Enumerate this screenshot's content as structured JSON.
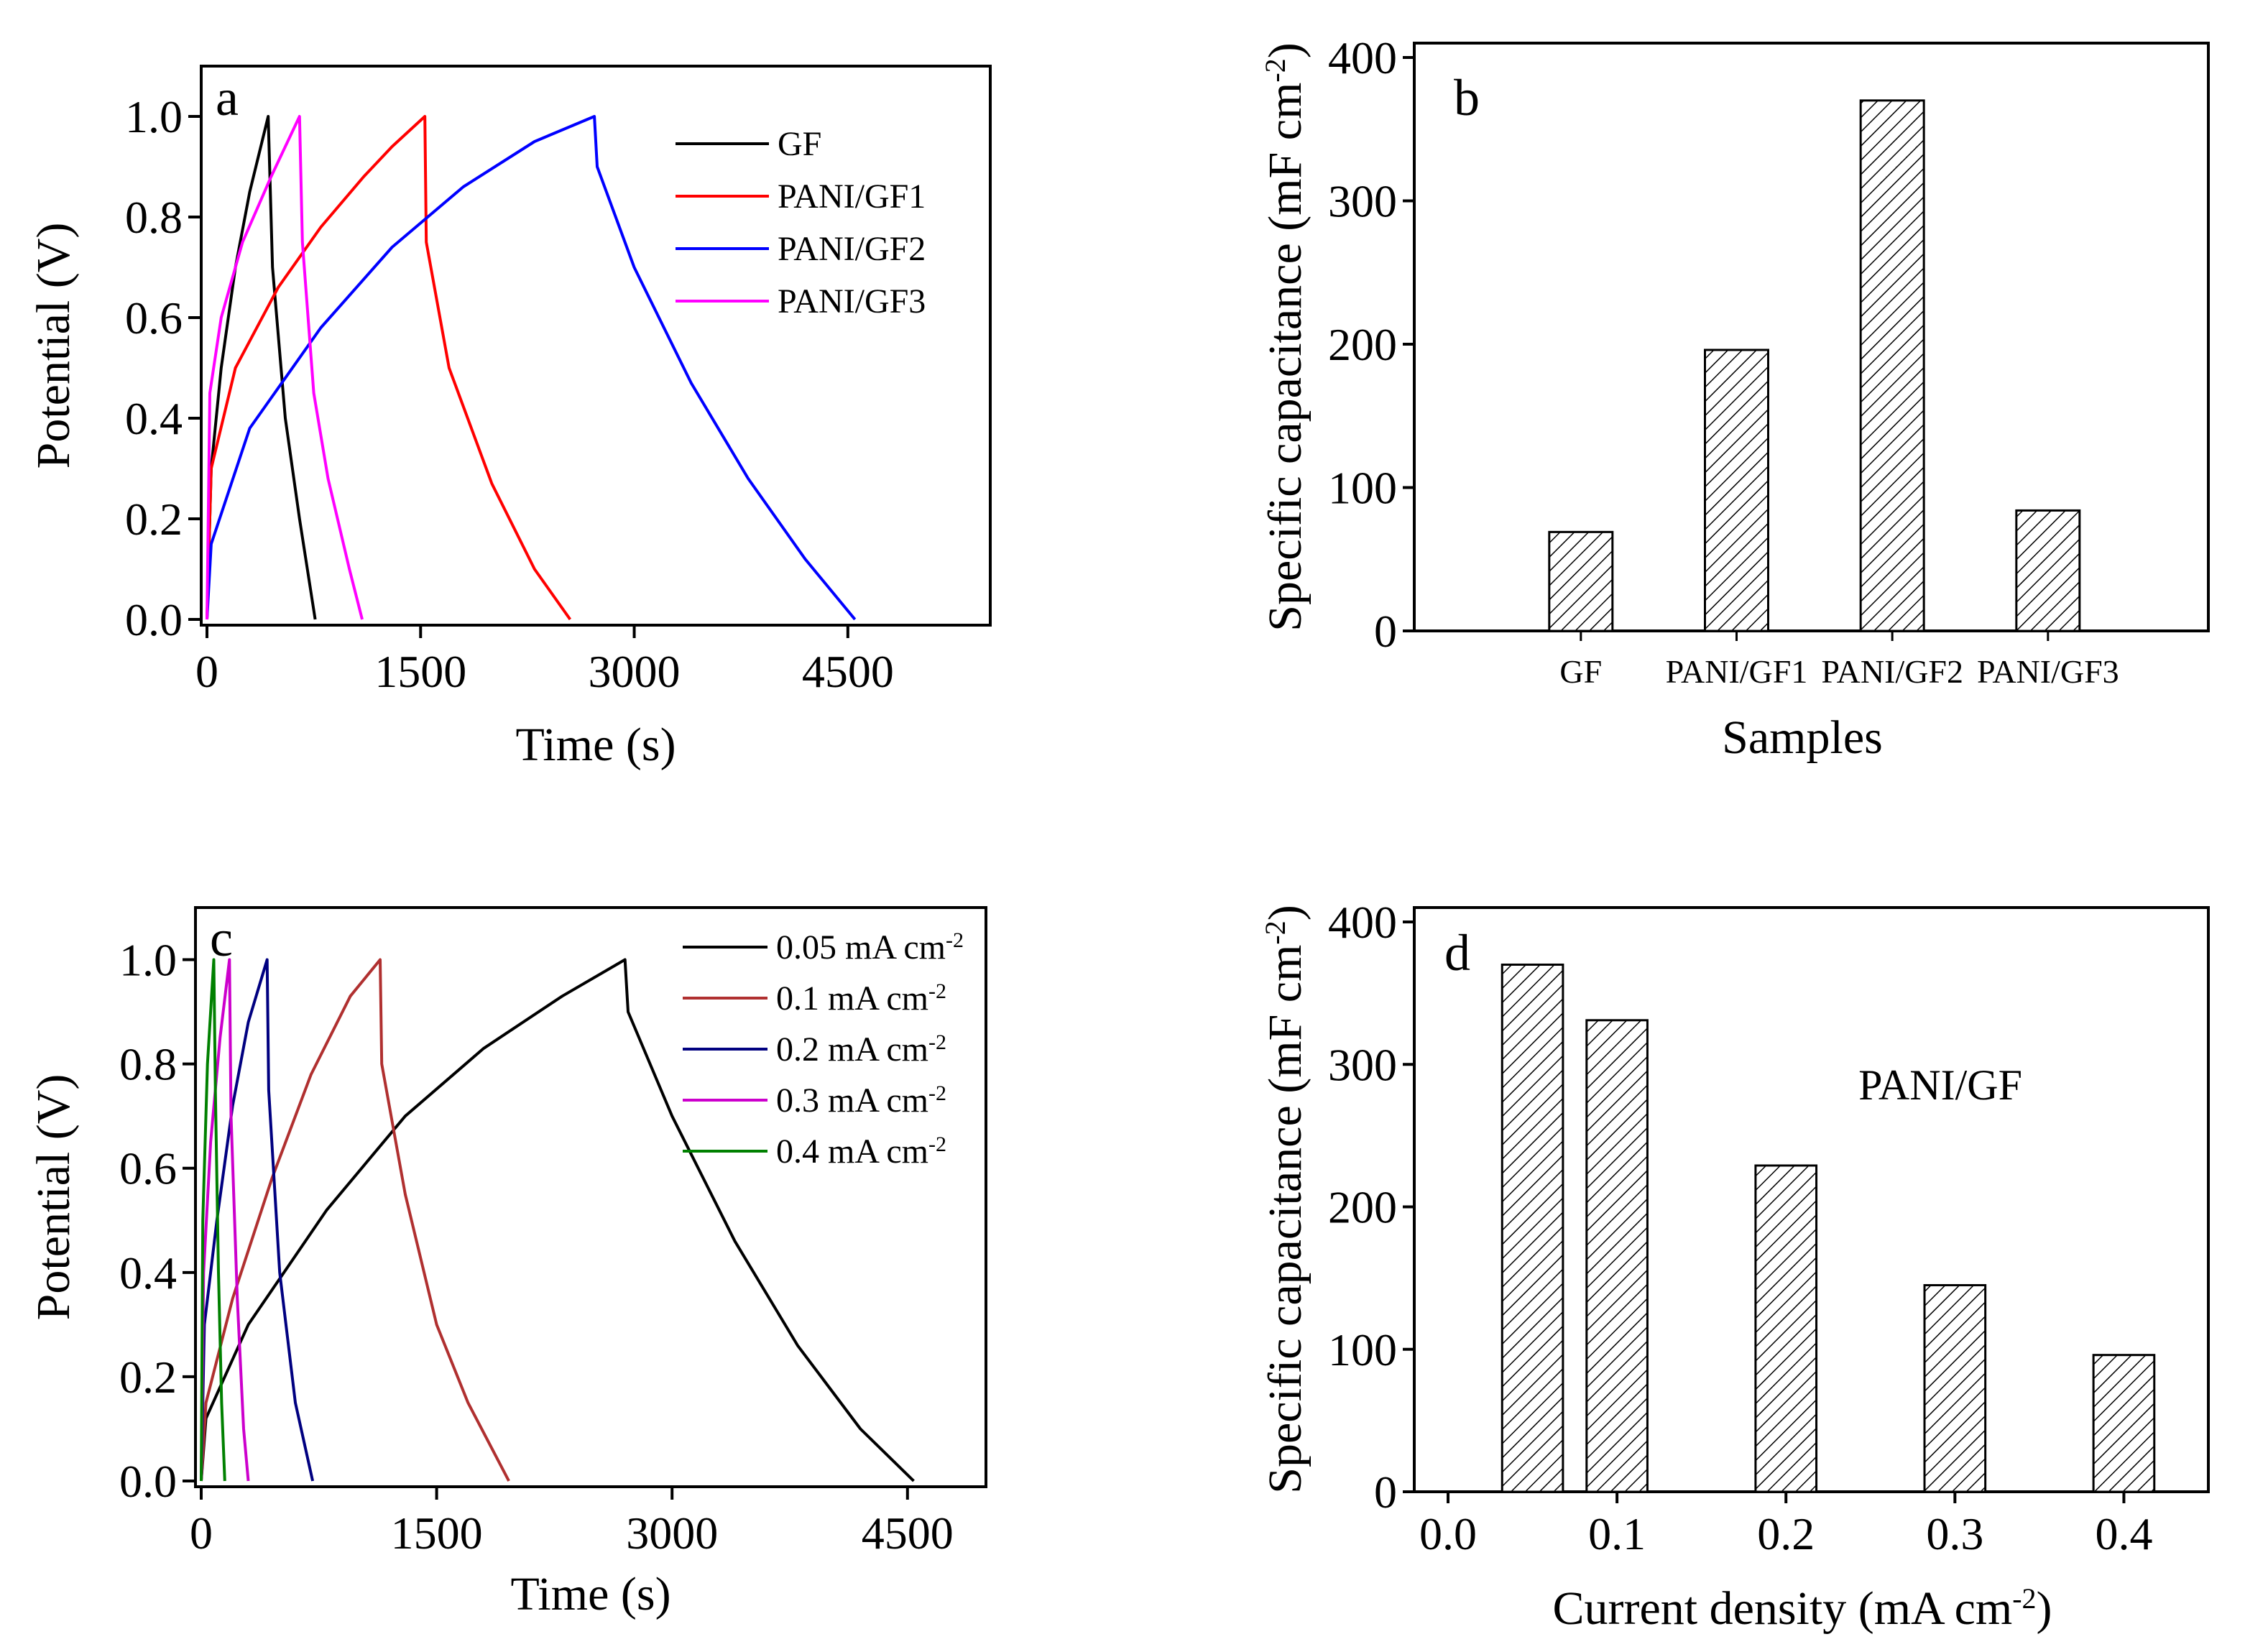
{
  "chart_data": [
    {
      "type": "line",
      "panel": "a",
      "xlabel": "Time (s)",
      "ylabel": "Potential (V)",
      "xlim": [
        0,
        5500
      ],
      "ylim": [
        0,
        1.1
      ],
      "xticks": [
        0,
        1500,
        3000,
        4500
      ],
      "xtick_labels": [
        "0",
        "1500",
        "3000",
        "4500"
      ],
      "yticks": [
        0.0,
        0.2,
        0.4,
        0.6,
        0.8,
        1.0
      ],
      "ytick_labels": [
        "0.0",
        "0.2",
        "0.4",
        "0.6",
        "0.8",
        "1.0"
      ],
      "legend_position": "top-right",
      "series": [
        {
          "name": "GF",
          "color": "#000000",
          "x": [
            0,
            30,
            100,
            200,
            300,
            430,
            460,
            550,
            650,
            760
          ],
          "y": [
            0.0,
            0.3,
            0.5,
            0.7,
            0.85,
            1.0,
            0.7,
            0.4,
            0.2,
            0.0
          ]
        },
        {
          "name": "PANI/GF1",
          "color": "#ff0000",
          "x": [
            0,
            30,
            200,
            500,
            800,
            1100,
            1300,
            1530,
            1540,
            1700,
            2000,
            2300,
            2550
          ],
          "y": [
            0.0,
            0.3,
            0.5,
            0.66,
            0.78,
            0.88,
            0.94,
            1.0,
            0.75,
            0.5,
            0.27,
            0.1,
            0.0
          ],
          "hide_label": true
        },
        {
          "name": "PANI/GF2",
          "color": "#0000ff",
          "x": [
            0,
            30,
            300,
            800,
            1300,
            1800,
            2300,
            2720,
            2740,
            3000,
            3400,
            3800,
            4200,
            4550
          ],
          "y": [
            0.0,
            0.15,
            0.38,
            0.58,
            0.74,
            0.86,
            0.95,
            1.0,
            0.9,
            0.7,
            0.47,
            0.28,
            0.12,
            0.0
          ]
        },
        {
          "name": "PANI/GF3",
          "color": "#ff00ff",
          "x": [
            0,
            20,
            100,
            250,
            450,
            650,
            670,
            750,
            850,
            1000,
            1090
          ],
          "y": [
            0.0,
            0.45,
            0.6,
            0.75,
            0.88,
            1.0,
            0.75,
            0.45,
            0.28,
            0.1,
            0.0
          ]
        }
      ]
    },
    {
      "type": "bar",
      "panel": "b",
      "categories": [
        "GF",
        "PANI/GF1",
        "PANI/GF2",
        "PANI/GF3"
      ],
      "values": [
        69,
        196,
        370,
        84
      ],
      "xlabel": "Samples",
      "ylabel": "Specific capacitance (mF cm",
      "ylabel_sup": "-2",
      "ylabel_close": ")",
      "ylim": [
        0,
        400
      ],
      "yticks": [
        0,
        100,
        200,
        300,
        400
      ],
      "ytick_labels": [
        "0",
        "100",
        "200",
        "300",
        "400"
      ],
      "fill": "hatched"
    },
    {
      "type": "line",
      "panel": "c",
      "xlabel": "Time (s)",
      "ylabel": "Potential (V)",
      "xlim": [
        0,
        5000
      ],
      "ylim": [
        0,
        1.1
      ],
      "xticks": [
        0,
        1500,
        3000,
        4500
      ],
      "xtick_labels": [
        "0",
        "1500",
        "3000",
        "4500"
      ],
      "yticks": [
        0.0,
        0.2,
        0.4,
        0.6,
        0.8,
        1.0
      ],
      "ytick_labels": [
        "0.0",
        "0.2",
        "0.4",
        "0.6",
        "0.8",
        "1.0"
      ],
      "legend_position": "top-right",
      "series": [
        {
          "name": "0.05 mA cm",
          "sup": "-2",
          "color": "#000000",
          "x": [
            0,
            30,
            300,
            800,
            1300,
            1800,
            2300,
            2700,
            2720,
            3000,
            3400,
            3800,
            4200,
            4540
          ],
          "y": [
            0.0,
            0.12,
            0.3,
            0.52,
            0.7,
            0.83,
            0.93,
            1.0,
            0.9,
            0.7,
            0.46,
            0.26,
            0.1,
            0.0
          ]
        },
        {
          "name": "0.1 mA cm",
          "sup": "-2",
          "color": "#b03030",
          "x": [
            0,
            30,
            200,
            450,
            700,
            950,
            1140,
            1150,
            1300,
            1500,
            1700,
            1960
          ],
          "y": [
            0.0,
            0.15,
            0.35,
            0.58,
            0.78,
            0.93,
            1.0,
            0.8,
            0.55,
            0.3,
            0.15,
            0.0
          ]
        },
        {
          "name": "0.2 mA cm",
          "sup": "-2",
          "color": "#000080",
          "x": [
            0,
            20,
            100,
            200,
            300,
            420,
            430,
            500,
            600,
            710
          ],
          "y": [
            0.0,
            0.3,
            0.5,
            0.72,
            0.88,
            1.0,
            0.75,
            0.4,
            0.15,
            0.0
          ]
        },
        {
          "name": "0.3 mA cm",
          "sup": "-2",
          "color": "#cc00cc",
          "x": [
            0,
            15,
            60,
            120,
            180,
            190,
            230,
            270,
            300
          ],
          "y": [
            0.0,
            0.4,
            0.65,
            0.85,
            1.0,
            0.7,
            0.35,
            0.1,
            0.0
          ]
        },
        {
          "name": "0.4 mA cm",
          "sup": "-2",
          "color": "#008000",
          "x": [
            0,
            10,
            40,
            80,
            90,
            110,
            130,
            150
          ],
          "y": [
            0.0,
            0.5,
            0.8,
            1.0,
            0.75,
            0.4,
            0.15,
            0.0
          ]
        }
      ]
    },
    {
      "type": "bar",
      "panel": "d",
      "x": [
        0.05,
        0.1,
        0.2,
        0.3,
        0.4
      ],
      "values": [
        370,
        331,
        229,
        145,
        96
      ],
      "xlabel": "Current density (mA cm",
      "xlabel_sup": "-2",
      "xlabel_close": ")",
      "ylabel": "Specific capacitance (mF cm",
      "ylabel_sup": "-2",
      "ylabel_close": ")",
      "xlim": [
        -0.02,
        0.45
      ],
      "ylim": [
        0,
        400
      ],
      "xticks": [
        0.0,
        0.1,
        0.2,
        0.3,
        0.4
      ],
      "xtick_labels": [
        "0.0",
        "0.1",
        "0.2",
        "0.3",
        "0.4"
      ],
      "yticks": [
        0,
        100,
        200,
        300,
        400
      ],
      "ytick_labels": [
        "0",
        "100",
        "200",
        "300",
        "400"
      ],
      "annotation": "PANI/GF",
      "bar_width": 0.036,
      "fill": "hatched"
    }
  ]
}
